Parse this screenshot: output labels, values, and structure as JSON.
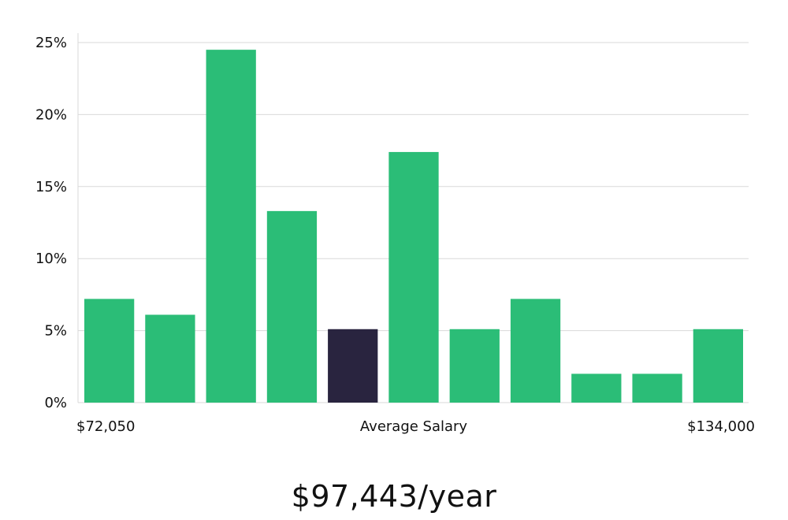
{
  "chart_data": {
    "type": "bar",
    "categories": [
      "1",
      "2",
      "3",
      "4",
      "5",
      "6",
      "7",
      "8",
      "9",
      "10",
      "11"
    ],
    "values": [
      7.2,
      6.1,
      24.5,
      13.3,
      5.1,
      17.4,
      5.1,
      7.2,
      2.0,
      2.0,
      5.1
    ],
    "highlight_index": 4,
    "ylim": [
      0,
      25
    ],
    "yticks": [
      "0%",
      "5%",
      "10%",
      "15%",
      "20%",
      "25%"
    ],
    "ytick_values": [
      0,
      5,
      10,
      15,
      20,
      25
    ],
    "x_left_label": "$72,050",
    "x_center_label": "Average Salary",
    "x_right_label": "$134,000",
    "grid": true,
    "colors": {
      "bar": "#2bbd77",
      "highlight": "#29243f",
      "grid": "#d9d9d9"
    }
  },
  "summary": {
    "salary_text": "$97,443/year"
  }
}
